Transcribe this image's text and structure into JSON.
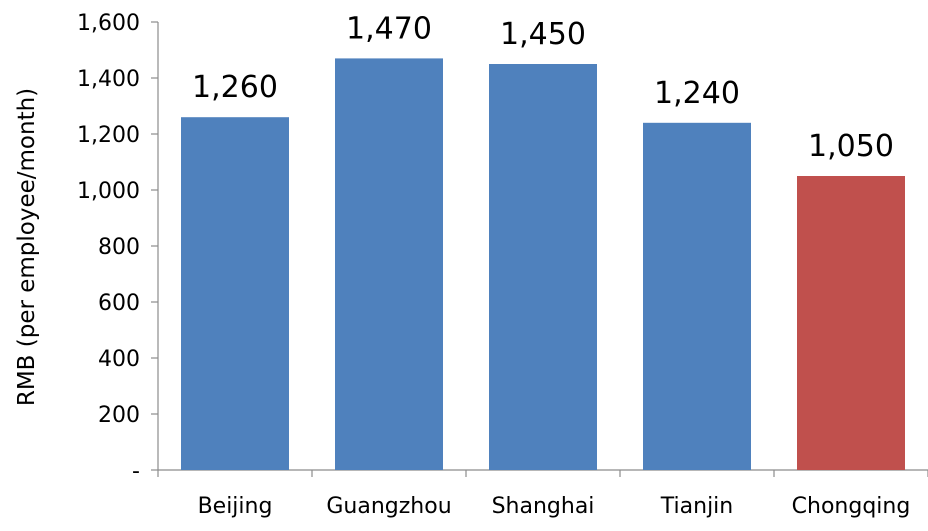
{
  "chart_data": {
    "type": "bar",
    "ylabel": "RMB (per employee/month)",
    "xlabel": "",
    "categories": [
      "Beijing",
      "Guangzhou",
      "Shanghai",
      "Tianjin",
      "Chongqing"
    ],
    "values": [
      1260,
      1470,
      1450,
      1240,
      1050
    ],
    "value_labels": [
      "1,260",
      "1,470",
      "1,450",
      "1,240",
      "1,050"
    ],
    "bar_colors": [
      "#4f81bd",
      "#4f81bd",
      "#4f81bd",
      "#4f81bd",
      "#c0504d"
    ],
    "ylim": [
      0,
      1600
    ],
    "yticks": [
      0,
      200,
      400,
      600,
      800,
      1000,
      1200,
      1400,
      1600
    ],
    "ytick_labels": [
      "-",
      "200",
      "400",
      "600",
      "800",
      "1,000",
      "1,200",
      "1,400",
      "1,600"
    ],
    "grid": false,
    "legend": "none"
  }
}
